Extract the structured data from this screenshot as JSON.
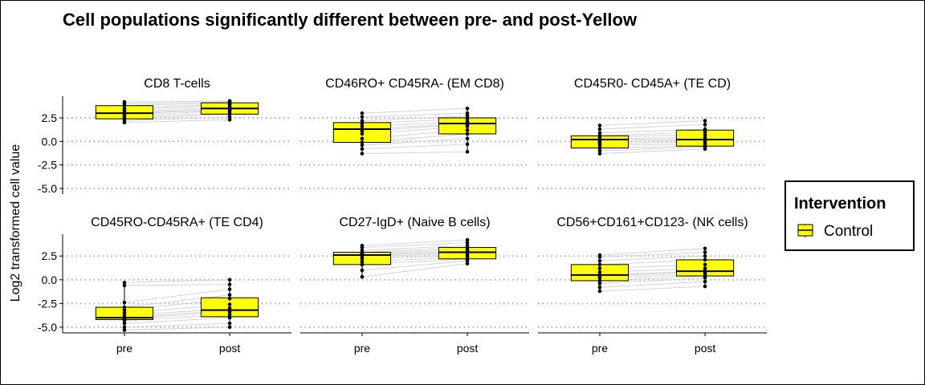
{
  "chart_data": {
    "type": "boxplot",
    "title": "Cell populations significantly different between pre- and post-Yellow",
    "ylabel": "Log2 transformed cell value",
    "x_categories": [
      "pre",
      "post"
    ],
    "y_ticks": [
      2.5,
      0.0,
      -2.5,
      -5.0
    ],
    "y_tick_labels": [
      "2.5",
      "0.0",
      "-2.5",
      "-5.0"
    ],
    "ylim": [
      -5.6,
      4.8
    ],
    "grid": "horizontal dotted at y ticks",
    "legend": {
      "title": "Intervention",
      "placement": "right",
      "items": [
        {
          "label": "Control",
          "color": "#FFFF00"
        }
      ]
    },
    "box_fill": "#FFFF00",
    "line_color": "#d0d0d0",
    "panels": [
      {
        "title": "CD8 T-cells",
        "pre": {
          "q1": 2.4,
          "median": 3.0,
          "q3": 3.8,
          "points": [
            2.0,
            2.2,
            2.4,
            2.5,
            2.7,
            2.9,
            3.0,
            3.1,
            3.3,
            3.5,
            3.8,
            4.0,
            4.2
          ]
        },
        "post": {
          "q1": 2.9,
          "median": 3.5,
          "q3": 4.1,
          "points": [
            2.3,
            2.6,
            2.9,
            3.1,
            3.3,
            3.4,
            3.5,
            3.7,
            3.9,
            4.0,
            4.1,
            4.2,
            4.3
          ]
        }
      },
      {
        "title": "CD46RO+ CD45RA- (EM CD8)",
        "pre": {
          "q1": -0.1,
          "median": 1.3,
          "q3": 2.0,
          "points": [
            -1.3,
            -0.8,
            -0.4,
            -0.1,
            0.3,
            0.8,
            1.1,
            1.3,
            1.6,
            1.9,
            2.2,
            2.6,
            3.0
          ]
        },
        "post": {
          "q1": 0.8,
          "median": 1.9,
          "q3": 2.5,
          "points": [
            -1.1,
            -0.3,
            0.3,
            0.8,
            1.2,
            1.6,
            1.8,
            1.9,
            2.1,
            2.4,
            2.7,
            3.0,
            3.5
          ]
        }
      },
      {
        "title": "CD45R0- CD45A+ (TE CD)",
        "pre": {
          "q1": -0.7,
          "median": 0.2,
          "q3": 0.6,
          "points": [
            -1.3,
            -1.0,
            -0.7,
            -0.4,
            -0.2,
            0.0,
            0.2,
            0.3,
            0.5,
            0.6,
            0.9,
            1.3,
            1.7
          ]
        },
        "post": {
          "q1": -0.5,
          "median": 0.2,
          "q3": 1.2,
          "points": [
            -0.8,
            -0.6,
            -0.5,
            -0.3,
            -0.1,
            0.1,
            0.2,
            0.4,
            0.7,
            1.0,
            1.3,
            1.8,
            2.2
          ]
        }
      },
      {
        "title": "CD45RO-CD45RA+ (TE CD4)",
        "pre": {
          "q1": -4.2,
          "median": -4.0,
          "q3": -2.9,
          "points": [
            -5.3,
            -5.0,
            -4.6,
            -4.3,
            -4.1,
            -4.0,
            -3.8,
            -3.5,
            -3.2,
            -2.9,
            -2.4,
            -0.6,
            -0.3
          ]
        },
        "post": {
          "q1": -3.9,
          "median": -3.2,
          "q3": -1.9,
          "points": [
            -5.0,
            -4.6,
            -4.0,
            -3.7,
            -3.4,
            -3.2,
            -3.0,
            -2.6,
            -2.0,
            -1.6,
            -1.0,
            -0.5,
            0.0
          ]
        }
      },
      {
        "title": "CD27-IgD+ (Naive B cells)",
        "pre": {
          "q1": 1.6,
          "median": 2.6,
          "q3": 2.9,
          "points": [
            0.3,
            1.0,
            1.6,
            1.9,
            2.2,
            2.4,
            2.6,
            2.7,
            2.8,
            2.9,
            3.1,
            3.4,
            3.6
          ]
        },
        "post": {
          "q1": 2.2,
          "median": 2.9,
          "q3": 3.4,
          "points": [
            1.7,
            2.0,
            2.2,
            2.4,
            2.6,
            2.8,
            2.9,
            3.0,
            3.2,
            3.4,
            3.6,
            3.9,
            4.2
          ]
        }
      },
      {
        "title": "CD56+CD161+CD123- (NK cells)",
        "pre": {
          "q1": -0.1,
          "median": 0.5,
          "q3": 1.6,
          "points": [
            -1.2,
            -0.8,
            -0.4,
            -0.1,
            0.2,
            0.4,
            0.5,
            0.8,
            1.2,
            1.6,
            2.0,
            2.4,
            2.6
          ]
        },
        "post": {
          "q1": 0.4,
          "median": 0.9,
          "q3": 2.1,
          "points": [
            -0.7,
            -0.2,
            0.2,
            0.4,
            0.6,
            0.8,
            0.9,
            1.2,
            1.6,
            2.1,
            2.5,
            2.9,
            3.3
          ]
        }
      }
    ]
  }
}
